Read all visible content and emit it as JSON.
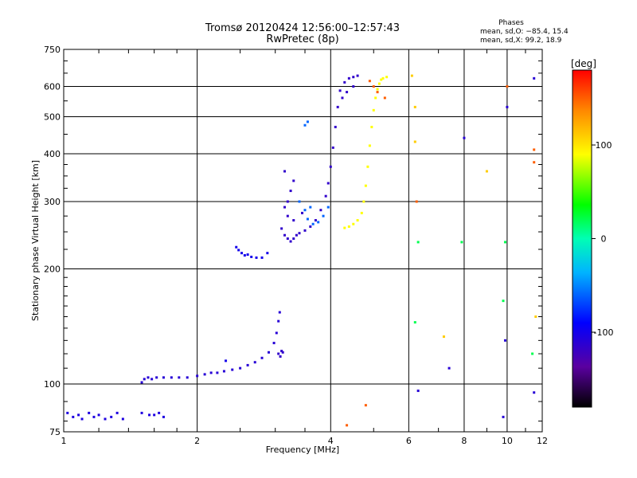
{
  "chart_data": {
    "type": "scatter",
    "title": "Tromsø 20120424 12:56:00–12:57:43",
    "subtitle": "RwPretec (8p)",
    "xlabel": "Frequency [MHz]",
    "ylabel": "Stationary phase Virtual Height [km]",
    "x_scale": "log",
    "y_scale": "log",
    "xlim": [
      1,
      12
    ],
    "ylim": [
      75,
      750
    ],
    "x_ticks": [
      1,
      2,
      4,
      6,
      8,
      10,
      12
    ],
    "y_ticks": [
      75,
      100,
      200,
      300,
      400,
      500,
      600,
      750
    ],
    "grid": true,
    "phases_box": {
      "title": "Phases",
      "line1": "mean, sd,O:  −85.4, 15.4",
      "line2": "mean, sd,X:   99.2, 18.9"
    },
    "colorbar": {
      "label": "[deg]",
      "range": [
        -180,
        180
      ],
      "ticks": [
        100,
        0,
        -100
      ]
    },
    "series": [
      {
        "phase": -105,
        "points": [
          [
            1.02,
            84
          ],
          [
            1.05,
            82
          ],
          [
            1.08,
            83
          ],
          [
            1.1,
            81
          ],
          [
            1.14,
            84
          ],
          [
            1.17,
            82
          ],
          [
            1.2,
            83
          ],
          [
            1.24,
            81
          ],
          [
            1.28,
            82
          ],
          [
            1.32,
            84
          ],
          [
            1.36,
            81
          ],
          [
            1.5,
            84
          ],
          [
            1.56,
            83
          ],
          [
            1.6,
            83
          ],
          [
            1.64,
            84
          ],
          [
            1.68,
            82
          ]
        ]
      },
      {
        "phase": -110,
        "points": [
          [
            1.5,
            101
          ],
          [
            1.52,
            103
          ],
          [
            1.55,
            104
          ],
          [
            1.58,
            103
          ],
          [
            1.62,
            104
          ],
          [
            1.68,
            104
          ],
          [
            1.75,
            104
          ],
          [
            1.82,
            104
          ],
          [
            1.9,
            104
          ],
          [
            2.0,
            105
          ],
          [
            2.08,
            106
          ],
          [
            2.15,
            107
          ],
          [
            2.22,
            107
          ],
          [
            2.3,
            108
          ],
          [
            2.4,
            109
          ],
          [
            2.5,
            110
          ],
          [
            2.6,
            112
          ],
          [
            2.7,
            114
          ],
          [
            2.8,
            117
          ],
          [
            2.9,
            121
          ],
          [
            2.98,
            128
          ],
          [
            3.02,
            136
          ],
          [
            3.05,
            146
          ],
          [
            3.07,
            154
          ]
        ]
      },
      {
        "phase": -100,
        "points": [
          [
            2.45,
            228
          ],
          [
            2.48,
            224
          ],
          [
            2.52,
            220
          ],
          [
            2.56,
            217
          ],
          [
            2.6,
            218
          ],
          [
            2.65,
            215
          ],
          [
            2.72,
            214
          ],
          [
            2.8,
            214
          ],
          [
            2.88,
            220
          ],
          [
            2.32,
            115
          ]
        ]
      },
      {
        "phase": -115,
        "points": [
          [
            3.05,
            120
          ],
          [
            3.08,
            118
          ],
          [
            3.12,
            121
          ],
          [
            3.1,
            122
          ]
        ]
      },
      {
        "phase": -115,
        "points": [
          [
            3.1,
            255
          ],
          [
            3.15,
            245
          ],
          [
            3.2,
            240
          ],
          [
            3.25,
            236
          ],
          [
            3.3,
            240
          ],
          [
            3.35,
            245
          ],
          [
            3.4,
            248
          ],
          [
            3.5,
            252
          ],
          [
            3.6,
            258
          ],
          [
            3.7,
            268
          ],
          [
            3.8,
            285
          ],
          [
            3.9,
            310
          ],
          [
            3.95,
            335
          ],
          [
            4.0,
            370
          ],
          [
            4.05,
            415
          ],
          [
            4.1,
            470
          ],
          [
            4.15,
            530
          ],
          [
            4.2,
            585
          ],
          [
            4.3,
            615
          ],
          [
            4.4,
            630
          ],
          [
            4.5,
            635
          ],
          [
            4.6,
            640
          ],
          [
            4.5,
            600
          ],
          [
            4.35,
            580
          ],
          [
            4.25,
            560
          ],
          [
            3.15,
            290
          ],
          [
            3.2,
            300
          ],
          [
            3.25,
            320
          ],
          [
            3.3,
            340
          ],
          [
            3.15,
            360
          ],
          [
            3.2,
            275
          ],
          [
            3.3,
            268
          ],
          [
            3.45,
            280
          ]
        ]
      },
      {
        "phase": -60,
        "points": [
          [
            3.4,
            300
          ],
          [
            3.5,
            285
          ],
          [
            3.6,
            290
          ],
          [
            3.55,
            270
          ],
          [
            3.65,
            262
          ],
          [
            3.75,
            265
          ],
          [
            3.85,
            275
          ],
          [
            3.95,
            290
          ],
          [
            3.5,
            475
          ],
          [
            3.55,
            485
          ]
        ]
      },
      {
        "phase": 90,
        "points": [
          [
            4.3,
            256
          ],
          [
            4.4,
            258
          ],
          [
            4.5,
            262
          ],
          [
            4.6,
            268
          ],
          [
            4.7,
            280
          ],
          [
            4.75,
            300
          ],
          [
            4.8,
            330
          ],
          [
            4.85,
            370
          ],
          [
            4.9,
            420
          ],
          [
            4.95,
            470
          ],
          [
            5.0,
            520
          ],
          [
            5.05,
            560
          ],
          [
            5.1,
            590
          ],
          [
            5.15,
            610
          ],
          [
            5.2,
            625
          ],
          [
            5.25,
            630
          ],
          [
            5.35,
            635
          ]
        ]
      },
      {
        "phase": 150,
        "points": [
          [
            4.9,
            620
          ],
          [
            5.0,
            600
          ],
          [
            5.1,
            580
          ],
          [
            5.3,
            560
          ],
          [
            4.35,
            78
          ],
          [
            4.8,
            88
          ],
          [
            6.25,
            300
          ],
          [
            10.0,
            600
          ],
          [
            11.5,
            410
          ],
          [
            11.5,
            380
          ]
        ]
      },
      {
        "phase": 20,
        "points": [
          [
            6.3,
            235
          ],
          [
            7.9,
            235
          ],
          [
            9.9,
            235
          ],
          [
            6.2,
            145
          ],
          [
            9.8,
            165
          ],
          [
            11.4,
            120
          ]
        ]
      },
      {
        "phase": -110,
        "points": [
          [
            6.3,
            96
          ],
          [
            7.4,
            110
          ],
          [
            9.9,
            130
          ],
          [
            9.8,
            82
          ],
          [
            11.5,
            95
          ],
          [
            11.5,
            630
          ],
          [
            10.0,
            530
          ],
          [
            8.0,
            440
          ]
        ]
      },
      {
        "phase": 110,
        "points": [
          [
            6.2,
            530
          ],
          [
            9.0,
            360
          ],
          [
            7.2,
            133
          ],
          [
            11.6,
            150
          ],
          [
            6.1,
            640
          ],
          [
            6.2,
            430
          ]
        ]
      }
    ]
  }
}
